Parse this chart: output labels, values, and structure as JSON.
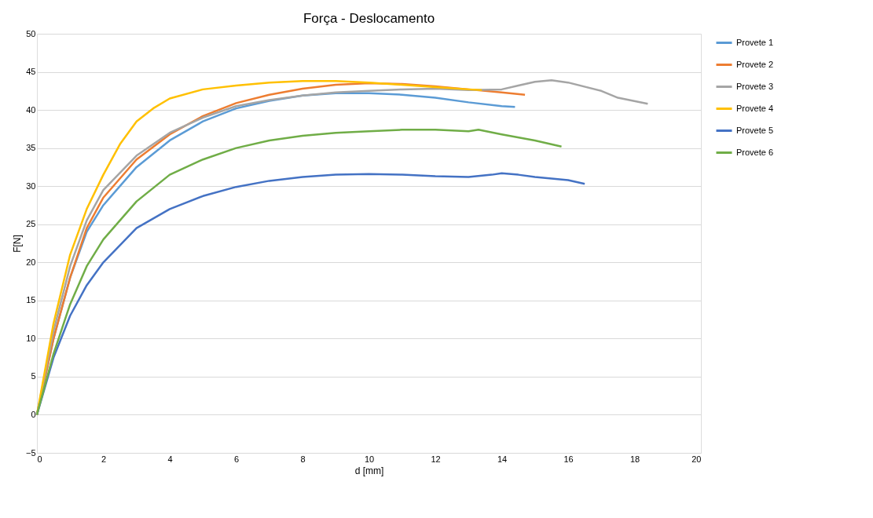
{
  "chart_data": {
    "type": "line",
    "title": "Força - Deslocamento",
    "xlabel": "d [mm]",
    "ylabel": "F[N]",
    "xlim": [
      0,
      20
    ],
    "xticks": [
      0,
      2,
      4,
      6,
      8,
      10,
      12,
      14,
      16,
      18,
      20
    ],
    "ylim": [
      -5,
      50
    ],
    "yticks": [
      -5,
      0,
      5,
      10,
      15,
      20,
      25,
      30,
      35,
      40,
      45,
      50
    ],
    "grid": "y",
    "legend": "right",
    "marker": "none",
    "line_style": "solid",
    "series": [
      {
        "name": "Provete 1",
        "color": "#5b9bd5",
        "x": [
          0,
          0.5,
          1,
          1.5,
          2,
          3,
          4,
          5,
          6,
          7,
          8,
          9,
          10,
          11,
          12,
          13,
          14,
          14.4
        ],
        "values": [
          0,
          10,
          18,
          24,
          27.5,
          32.5,
          36,
          38.5,
          40.2,
          41.2,
          41.9,
          42.2,
          42.2,
          42,
          41.6,
          41,
          40.5,
          40.4
        ]
      },
      {
        "name": "Provete 2",
        "color": "#ed7d31",
        "x": [
          0,
          0.5,
          1,
          1.5,
          2,
          3,
          4,
          5,
          6,
          7,
          8,
          9,
          10,
          11,
          12,
          13,
          14,
          14.7
        ],
        "values": [
          0,
          10,
          18,
          24.5,
          28.5,
          33.5,
          36.8,
          39.2,
          40.9,
          42,
          42.8,
          43.3,
          43.5,
          43.4,
          43.1,
          42.7,
          42.3,
          42
        ]
      },
      {
        "name": "Provete 3",
        "color": "#a5a5a5",
        "x": [
          0,
          0.5,
          1,
          1.5,
          2,
          3,
          4,
          5,
          6,
          7,
          8,
          9,
          10,
          11,
          12,
          13,
          14,
          14.5,
          15,
          15.5,
          16,
          17,
          17.5,
          18.4
        ],
        "values": [
          0,
          11,
          19.5,
          25.5,
          29.5,
          34,
          37,
          39,
          40.5,
          41.3,
          41.9,
          42.3,
          42.5,
          42.7,
          42.8,
          42.6,
          42.7,
          43.2,
          43.7,
          43.9,
          43.6,
          42.5,
          41.6,
          40.8
        ]
      },
      {
        "name": "Provete 4",
        "color": "#ffc000",
        "x": [
          0,
          0.5,
          1,
          1.5,
          2,
          2.5,
          3,
          3.5,
          4,
          5,
          6,
          7,
          8,
          9,
          10,
          11,
          12,
          13,
          13.4
        ],
        "values": [
          0,
          12,
          21,
          27,
          31.5,
          35.5,
          38.5,
          40.2,
          41.5,
          42.7,
          43.2,
          43.6,
          43.8,
          43.8,
          43.6,
          43.3,
          43,
          42.7,
          42.6
        ]
      },
      {
        "name": "Provete 5",
        "color": "#4472c4",
        "x": [
          0,
          0.5,
          1,
          1.5,
          2,
          3,
          4,
          5,
          6,
          7,
          8,
          9,
          10,
          11,
          12,
          13,
          13.7,
          14,
          14.5,
          15,
          16,
          16.5
        ],
        "values": [
          0,
          7.5,
          13,
          17,
          20,
          24.5,
          27,
          28.7,
          29.9,
          30.7,
          31.2,
          31.5,
          31.6,
          31.5,
          31.3,
          31.2,
          31.5,
          31.7,
          31.5,
          31.2,
          30.8,
          30.3
        ]
      },
      {
        "name": "Provete 6",
        "color": "#70ad47",
        "x": [
          0,
          0.5,
          1,
          1.5,
          2,
          3,
          4,
          5,
          6,
          7,
          8,
          9,
          10,
          11,
          12,
          13,
          13.3,
          14,
          15,
          15.8
        ],
        "values": [
          0,
          8,
          14.5,
          19.5,
          23,
          28,
          31.5,
          33.5,
          35,
          36,
          36.6,
          37,
          37.2,
          37.4,
          37.4,
          37.2,
          37.4,
          36.8,
          36,
          35.2
        ]
      }
    ]
  }
}
